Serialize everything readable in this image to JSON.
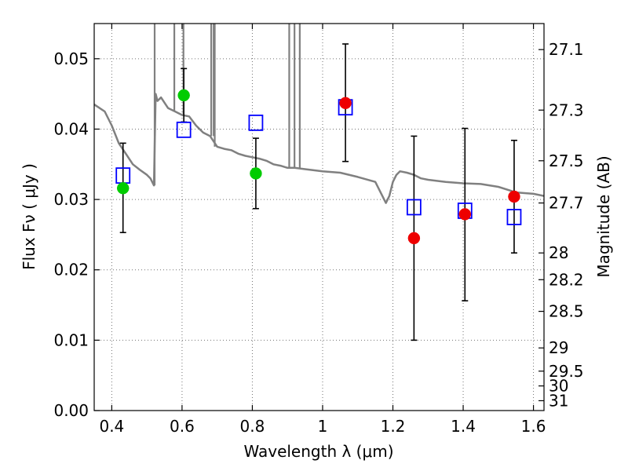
{
  "chart_data": {
    "type": "scatter",
    "title": "",
    "xlabel": "Wavelength  λ (μm)",
    "ylabel": "Flux  Fν  ( μJy )",
    "y2label": "Magnitude (AB)",
    "xlim": [
      0.35,
      1.63
    ],
    "ylim": [
      0.0,
      0.055
    ],
    "grid": true,
    "x_ticks": [
      0.4,
      0.6,
      0.8,
      1.0,
      1.2,
      1.4,
      1.6
    ],
    "x_tick_labels": [
      "0.4",
      "0.6",
      "0.8",
      "1",
      "1.2",
      "1.4",
      "1.6"
    ],
    "y_ticks": [
      0.0,
      0.01,
      0.02,
      0.03,
      0.04,
      0.05
    ],
    "y_tick_labels": [
      "0.00",
      "0.01",
      "0.02",
      "0.03",
      "0.04",
      "0.05"
    ],
    "y2_ticks": [
      {
        "label": "27.1",
        "flux": 0.0513
      },
      {
        "label": "27.3",
        "flux": 0.0427
      },
      {
        "label": "27.5",
        "flux": 0.0355
      },
      {
        "label": "27.7",
        "flux": 0.0295
      },
      {
        "label": "28",
        "flux": 0.0224
      },
      {
        "label": "28.2",
        "flux": 0.0186
      },
      {
        "label": "28.5",
        "flux": 0.0141
      },
      {
        "label": "29",
        "flux": 0.0089
      },
      {
        "label": "29.5",
        "flux": 0.0056
      },
      {
        "label": "30",
        "flux": 0.0035
      },
      {
        "label": "31",
        "flux": 0.0014
      }
    ],
    "colors": {
      "template": "#808080",
      "green_points": "#00cc00",
      "red_points": "#ee0000",
      "model_squares": "#0000ff",
      "error_bars": "#000000"
    },
    "series": [
      {
        "kind": "template_spectrum",
        "x": [
          0.35,
          0.38,
          0.4,
          0.42,
          0.44,
          0.46,
          0.48,
          0.5,
          0.51,
          0.52,
          0.525,
          0.53,
          0.54,
          0.56,
          0.58,
          0.6,
          0.62,
          0.64,
          0.66,
          0.68,
          0.7,
          0.72,
          0.74,
          0.76,
          0.78,
          0.8,
          0.82,
          0.84,
          0.86,
          0.88,
          0.9,
          0.92,
          0.95,
          1.0,
          1.05,
          1.1,
          1.15,
          1.18,
          1.19,
          1.2,
          1.21,
          1.22,
          1.24,
          1.26,
          1.28,
          1.3,
          1.35,
          1.4,
          1.45,
          1.5,
          1.55,
          1.6,
          1.63
        ],
        "y": [
          0.0435,
          0.0425,
          0.0405,
          0.038,
          0.0365,
          0.035,
          0.0342,
          0.0335,
          0.033,
          0.032,
          0.045,
          0.044,
          0.0445,
          0.043,
          0.0425,
          0.042,
          0.0418,
          0.0405,
          0.0395,
          0.039,
          0.0375,
          0.0372,
          0.037,
          0.0365,
          0.0362,
          0.036,
          0.0358,
          0.0355,
          0.035,
          0.0348,
          0.0345,
          0.0345,
          0.0343,
          0.034,
          0.0338,
          0.0332,
          0.0325,
          0.0295,
          0.0305,
          0.0325,
          0.0335,
          0.034,
          0.0338,
          0.0335,
          0.033,
          0.0328,
          0.0325,
          0.0323,
          0.0322,
          0.0318,
          0.031,
          0.0308,
          0.0305
        ]
      },
      {
        "kind": "observed_green",
        "x": [
          0.432,
          0.605,
          0.81
        ],
        "y": [
          0.0316,
          0.0448,
          0.0337
        ],
        "yerr_low": [
          0.0253,
          0.041,
          0.0287
        ],
        "yerr_high": [
          0.038,
          0.0486,
          0.0387
        ]
      },
      {
        "kind": "observed_red",
        "x": [
          1.065,
          1.26,
          1.405,
          1.545
        ],
        "y": [
          0.0437,
          0.0245,
          0.0279,
          0.0304
        ],
        "yerr_low": [
          0.0354,
          0.01,
          0.0156,
          0.0224
        ],
        "yerr_high": [
          0.0521,
          0.039,
          0.0401,
          0.0384
        ]
      },
      {
        "kind": "model_squares",
        "x": [
          0.432,
          0.605,
          0.81,
          1.065,
          1.26,
          1.405,
          1.545
        ],
        "y": [
          0.0334,
          0.0399,
          0.0409,
          0.0431,
          0.0289,
          0.0284,
          0.0275
        ]
      }
    ]
  }
}
